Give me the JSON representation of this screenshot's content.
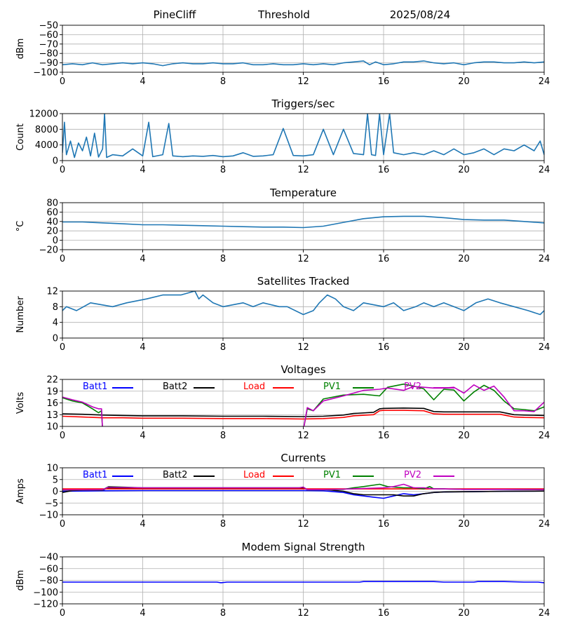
{
  "header": {
    "station": "PineCliff",
    "mode": "Threshold",
    "date": "2025/08/24"
  },
  "colors": {
    "series_default": "#1f77b4",
    "batt1": "#0000ff",
    "batt2": "#000000",
    "load": "#ff0000",
    "pv1": "#008000",
    "pv2": "#bf00bf",
    "grid": "#b0b0b0"
  },
  "chart_data": [
    {
      "type": "line",
      "title": "",
      "ylabel": "dBm",
      "xlim": [
        0,
        24
      ],
      "ylim": [
        -100,
        -50
      ],
      "xticks": [
        0,
        4,
        8,
        12,
        16,
        20,
        24
      ],
      "yticks": [
        -100,
        -90,
        -80,
        -70,
        -60,
        -50
      ],
      "grid": true,
      "series": [
        {
          "color": "#1f77b4",
          "x": [
            0,
            0.5,
            1,
            1.5,
            2,
            2.5,
            3,
            3.5,
            4,
            4.5,
            5,
            5.5,
            6,
            6.5,
            7,
            7.5,
            8,
            8.5,
            9,
            9.5,
            10,
            10.5,
            11,
            11.5,
            12,
            12.5,
            13,
            13.5,
            14,
            14.5,
            15,
            15.3,
            15.6,
            16,
            16.5,
            17,
            17.5,
            18,
            18.5,
            19,
            19.5,
            20,
            20.5,
            21,
            21.5,
            22,
            22.5,
            23,
            23.5,
            24
          ],
          "y": [
            -92,
            -91,
            -92,
            -90,
            -92,
            -91,
            -90,
            -91,
            -90,
            -91,
            -93,
            -91,
            -90,
            -91,
            -91,
            -90,
            -91,
            -91,
            -90,
            -92,
            -92,
            -91,
            -92,
            -92,
            -91,
            -92,
            -91,
            -92,
            -90,
            -89,
            -88,
            -92,
            -89,
            -92,
            -91,
            -89,
            -89,
            -88,
            -90,
            -91,
            -90,
            -92,
            -90,
            -89,
            -89,
            -90,
            -90,
            -89,
            -90,
            -89
          ]
        }
      ]
    },
    {
      "type": "line",
      "title": "Triggers/sec",
      "ylabel": "Count",
      "xlim": [
        0,
        24
      ],
      "ylim": [
        0,
        12000
      ],
      "xticks": [
        0,
        4,
        8,
        12,
        16,
        20,
        24
      ],
      "yticks": [
        0,
        4000,
        8000,
        12000
      ],
      "grid": true,
      "series": [
        {
          "color": "#1f77b4",
          "x": [
            0,
            0.1,
            0.2,
            0.4,
            0.6,
            0.8,
            1.0,
            1.2,
            1.4,
            1.6,
            1.8,
            2.0,
            2.1,
            2.2,
            2.5,
            3.0,
            3.5,
            4.0,
            4.3,
            4.5,
            5.0,
            5.3,
            5.5,
            6.0,
            6.5,
            7.0,
            7.5,
            8.0,
            8.5,
            9.0,
            9.5,
            10.0,
            10.5,
            11.0,
            11.5,
            12.0,
            12.5,
            13.0,
            13.5,
            14.0,
            14.5,
            15.0,
            15.2,
            15.4,
            15.6,
            15.8,
            16.0,
            16.3,
            16.5,
            17.0,
            17.5,
            18.0,
            18.5,
            19.0,
            19.5,
            20.0,
            20.5,
            21.0,
            21.5,
            22.0,
            22.5,
            23.0,
            23.5,
            23.8,
            24.0
          ],
          "y": [
            2000,
            9800,
            1500,
            5000,
            800,
            4500,
            2500,
            6000,
            1200,
            7000,
            900,
            3000,
            12000,
            800,
            1500,
            1200,
            3000,
            1200,
            9800,
            1000,
            1500,
            9500,
            1200,
            1000,
            1200,
            1100,
            1300,
            1000,
            1200,
            2000,
            1100,
            1200,
            1500,
            8200,
            1300,
            1200,
            1500,
            8000,
            1500,
            8000,
            1800,
            1500,
            12000,
            1500,
            1300,
            12000,
            1500,
            12000,
            2000,
            1500,
            2000,
            1500,
            2500,
            1500,
            3000,
            1500,
            2000,
            3000,
            1500,
            3000,
            2500,
            4000,
            2500,
            5000,
            1500
          ]
        }
      ]
    },
    {
      "type": "line",
      "title": "Temperature",
      "ylabel": "°C",
      "xlim": [
        0,
        24
      ],
      "ylim": [
        -20,
        80
      ],
      "xticks": [
        0,
        4,
        8,
        12,
        16,
        20,
        24
      ],
      "yticks": [
        -20,
        0,
        20,
        40,
        60,
        80
      ],
      "grid": true,
      "series": [
        {
          "color": "#1f77b4",
          "x": [
            0,
            1,
            2,
            3,
            4,
            5,
            6,
            7,
            8,
            9,
            10,
            11,
            12,
            13,
            14,
            15,
            16,
            17,
            18,
            19,
            20,
            21,
            22,
            23,
            24
          ],
          "y": [
            39,
            39,
            37,
            35,
            33,
            33,
            32,
            31,
            30,
            29,
            28,
            28,
            27,
            30,
            38,
            46,
            50,
            51,
            51,
            48,
            44,
            43,
            43,
            40,
            37
          ]
        }
      ]
    },
    {
      "type": "line",
      "title": "Satellites Tracked",
      "ylabel": "Number",
      "xlim": [
        0,
        24
      ],
      "ylim": [
        0,
        12
      ],
      "xticks": [
        0,
        4,
        8,
        12,
        16,
        20,
        24
      ],
      "yticks": [
        0,
        4,
        8,
        12
      ],
      "grid": true,
      "series": [
        {
          "color": "#1f77b4",
          "x": [
            0,
            0.2,
            0.7,
            1.4,
            2.5,
            3.2,
            4.2,
            5.0,
            5.9,
            6.6,
            6.8,
            7.0,
            7.5,
            8.0,
            9.0,
            9.5,
            10.0,
            10.8,
            11.2,
            12.0,
            12.5,
            12.8,
            13.2,
            13.6,
            14.0,
            14.5,
            15.0,
            16.0,
            16.5,
            17.0,
            17.6,
            18.0,
            18.5,
            19.0,
            19.5,
            20.0,
            20.6,
            21.2,
            21.8,
            22.5,
            23.2,
            23.8,
            24.0
          ],
          "y": [
            7,
            8,
            7,
            9,
            8,
            9,
            10,
            11,
            11,
            12,
            10,
            11,
            9,
            8,
            9,
            8,
            9,
            8,
            8,
            6,
            7,
            9,
            11,
            10,
            8,
            7,
            9,
            8,
            9,
            7,
            8,
            9,
            8,
            9,
            8,
            7,
            9,
            10,
            9,
            8,
            7,
            6,
            7
          ]
        }
      ]
    },
    {
      "type": "line",
      "title": "Voltages",
      "ylabel": "Volts",
      "xlim": [
        0,
        24
      ],
      "ylim": [
        10,
        22
      ],
      "xticks": [
        0,
        4,
        8,
        12,
        16,
        20,
        24
      ],
      "yticks": [
        10,
        13,
        16,
        19,
        22
      ],
      "grid": true,
      "legend_position": "top",
      "series": [
        {
          "name": "Batt1",
          "color": "#0000ff",
          "x": [
            0,
            24
          ],
          "y": [
            null,
            null
          ]
        },
        {
          "name": "Batt2",
          "color": "#000000",
          "x": [
            0,
            1,
            2,
            3,
            4,
            6,
            8,
            10,
            12,
            13,
            14,
            14.5,
            15.5,
            15.8,
            16,
            17,
            18,
            18.5,
            19,
            20,
            21,
            21.8,
            22.5,
            23,
            24
          ],
          "y": [
            13.2,
            13.1,
            12.9,
            12.8,
            12.7,
            12.7,
            12.6,
            12.6,
            12.5,
            12.6,
            12.9,
            13.3,
            13.6,
            14.5,
            14.6,
            14.7,
            14.6,
            13.8,
            13.7,
            13.7,
            13.7,
            13.7,
            13.0,
            12.9,
            12.8
          ]
        },
        {
          "name": "Load",
          "color": "#ff0000",
          "x": [
            0,
            1,
            2,
            3,
            4,
            6,
            8,
            10,
            12,
            13,
            14,
            14.5,
            15.5,
            15.8,
            16,
            17,
            18,
            18.5,
            19,
            20,
            21,
            21.8,
            22.5,
            23,
            24
          ],
          "y": [
            12.6,
            12.4,
            12.2,
            12.2,
            12.1,
            12.1,
            12.0,
            12.0,
            11.9,
            12.0,
            12.3,
            12.7,
            13.0,
            14.0,
            14.1,
            14.1,
            14.0,
            13.2,
            13.1,
            13.1,
            13.1,
            13.1,
            12.4,
            12.3,
            12.2
          ]
        },
        {
          "name": "PV1",
          "color": "#008000",
          "x": [
            0,
            0.5,
            1,
            1.5,
            1.8,
            1.95,
            2.0,
            12.0,
            12.2,
            12.5,
            13,
            14,
            15,
            15.8,
            16.2,
            17,
            17.5,
            18,
            18.5,
            19,
            19.5,
            20,
            20.5,
            21,
            21.5,
            22,
            22.5,
            23,
            23.5,
            24
          ],
          "y": [
            17.3,
            16.5,
            16.0,
            14.5,
            13.5,
            14.0,
            9,
            9,
            14.5,
            14.0,
            17.0,
            18.0,
            18.2,
            17.8,
            20.0,
            20.8,
            20.3,
            19.6,
            16.8,
            19.5,
            19.3,
            16.5,
            18.8,
            20.5,
            19.2,
            16.5,
            14.5,
            14.3,
            14.0,
            15.0
          ]
        },
        {
          "name": "PV2",
          "color": "#bf00bf",
          "x": [
            0,
            0.5,
            1,
            1.5,
            1.8,
            1.95,
            2.0,
            12.0,
            12.2,
            12.5,
            13,
            14,
            15,
            15.8,
            16.2,
            17,
            17.5,
            18,
            18.5,
            19,
            19.5,
            20,
            20.5,
            21,
            21.5,
            22,
            22.5,
            23,
            23.5,
            24
          ],
          "y": [
            17.5,
            16.8,
            16.2,
            15.0,
            14.5,
            14.5,
            9,
            9,
            14.8,
            14.0,
            16.5,
            17.8,
            19.2,
            19.5,
            19.8,
            19.2,
            20.2,
            20.0,
            19.8,
            19.8,
            20.0,
            18.5,
            20.6,
            19.2,
            20.3,
            17.5,
            14.0,
            14.0,
            13.8,
            16.2
          ]
        }
      ]
    },
    {
      "type": "line",
      "title": "Currents",
      "ylabel": "Amps",
      "xlim": [
        0,
        24
      ],
      "ylim": [
        -10,
        10
      ],
      "xticks": [
        0,
        4,
        8,
        12,
        16,
        20,
        24
      ],
      "yticks": [
        -10,
        -5,
        0,
        5,
        10
      ],
      "grid": true,
      "legend_position": "top",
      "series": [
        {
          "name": "Batt1",
          "color": "#0000ff",
          "x": [
            0,
            2,
            4,
            8,
            12,
            13,
            14,
            14.5,
            15,
            15.5,
            16,
            16.5,
            17,
            17.5,
            18,
            18.5,
            19,
            20,
            22,
            24
          ],
          "y": [
            0,
            0.2,
            0.3,
            0.3,
            0.3,
            0.2,
            -0.5,
            -1.5,
            -2.0,
            -2.5,
            -3.0,
            -2.0,
            -1.0,
            -1.5,
            -1.0,
            -0.5,
            -0.3,
            -0.2,
            0.0,
            0.1
          ]
        },
        {
          "name": "Batt2",
          "color": "#000000",
          "x": [
            0,
            0.5,
            1,
            2,
            2.3,
            4,
            8,
            11.8,
            12.0,
            12.2,
            13,
            14,
            14.5,
            15,
            15.5,
            16,
            16.5,
            17,
            17.5,
            18,
            18.5,
            19,
            20,
            22,
            24
          ],
          "y": [
            -0.5,
            0.3,
            0.5,
            0.5,
            1.5,
            1.2,
            1.2,
            1.2,
            1.5,
            0.8,
            0.8,
            0.0,
            -1.0,
            -1.5,
            -1.5,
            -1.5,
            -1.5,
            -2.0,
            -2.0,
            -1.0,
            -0.5,
            -0.3,
            -0.2,
            0.0,
            0.1
          ]
        },
        {
          "name": "Load",
          "color": "#ff0000",
          "x": [
            0,
            4,
            8,
            12,
            16,
            20,
            24
          ],
          "y": [
            1.0,
            1.0,
            1.0,
            1.0,
            1.0,
            1.0,
            1.0
          ]
        },
        {
          "name": "PV1",
          "color": "#008000",
          "x": [
            0,
            1,
            2,
            2.3,
            4,
            8,
            11.8,
            12.0,
            12.2,
            13,
            14,
            14.5,
            15,
            15.8,
            16.2,
            17,
            17.5,
            18,
            18.3,
            18.5,
            19,
            20,
            22,
            24
          ],
          "y": [
            0.5,
            0.5,
            0.6,
            2.0,
            1.5,
            1.5,
            1.5,
            1.8,
            0.6,
            0.6,
            0.8,
            1.5,
            2.0,
            3.0,
            2.0,
            1.5,
            1.5,
            1.0,
            2.0,
            1.0,
            1.0,
            0.8,
            0.8,
            0.7
          ]
        },
        {
          "name": "PV2",
          "color": "#bf00bf",
          "x": [
            0,
            1,
            2,
            2.3,
            4,
            8,
            11.8,
            12.0,
            12.2,
            13,
            14,
            15,
            16,
            16.5,
            17,
            17.5,
            18,
            18.5,
            19,
            20,
            22,
            24
          ],
          "y": [
            0.6,
            0.6,
            0.7,
            1.8,
            1.5,
            1.5,
            1.5,
            1.8,
            0.7,
            0.7,
            0.9,
            1.2,
            1.5,
            2.0,
            3.0,
            1.5,
            1.5,
            1.0,
            1.0,
            0.8,
            0.8,
            0.7
          ]
        }
      ]
    },
    {
      "type": "line",
      "title": "Modem Signal Strength",
      "ylabel": "dBm",
      "xlim": [
        0,
        24
      ],
      "ylim": [
        -120,
        -40
      ],
      "xticks": [
        0,
        4,
        8,
        12,
        16,
        20,
        24
      ],
      "yticks": [
        -120,
        -100,
        -80,
        -60,
        -40
      ],
      "grid": true,
      "series": [
        {
          "color": "#0000ff",
          "x": [
            0,
            2,
            4,
            6,
            7.7,
            7.9,
            8.2,
            10,
            12,
            14,
            14.8,
            15,
            16,
            18,
            18.5,
            19,
            20,
            20.5,
            20.7,
            21,
            22,
            23,
            23.7,
            24
          ],
          "y": [
            -83,
            -83,
            -83,
            -83,
            -83,
            -84,
            -83,
            -83,
            -83,
            -83,
            -83,
            -82,
            -82,
            -82,
            -82,
            -83,
            -83,
            -83,
            -82,
            -82,
            -82,
            -83,
            -83,
            -84
          ]
        }
      ]
    }
  ]
}
